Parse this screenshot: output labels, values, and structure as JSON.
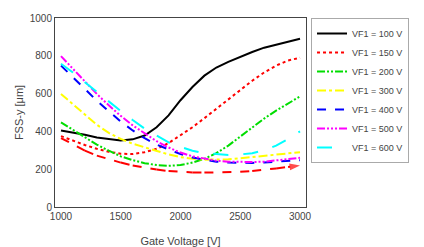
{
  "chart_data": {
    "type": "line",
    "xlabel": "Gate Voltage [V]",
    "ylabel": "FSS-y [μm]",
    "xlim": [
      950,
      3050
    ],
    "ylim": [
      0,
      1000
    ],
    "xticks": [
      1000,
      1500,
      2000,
      2500,
      3000
    ],
    "yticks": [
      0,
      200,
      400,
      600,
      800,
      1000
    ],
    "grid": false,
    "legend": "upper right",
    "x": [
      1000,
      1100,
      1200,
      1300,
      1400,
      1500,
      1600,
      1700,
      1800,
      1900,
      2000,
      2100,
      2200,
      2300,
      2400,
      2500,
      2600,
      2700,
      2800,
      2900,
      3000
    ],
    "series": [
      {
        "name": "VF1 = 100 V",
        "color": "black",
        "line_style": "solid",
        "values": [
          405,
          395,
          382,
          368,
          358,
          352,
          358,
          378,
          422,
          485,
          565,
          635,
          695,
          738,
          768,
          795,
          820,
          843,
          860,
          875,
          890
        ]
      },
      {
        "name": "VF1 = 150 V",
        "color": "red",
        "line_style": "dotted",
        "values": [
          375,
          350,
          328,
          308,
          292,
          282,
          280,
          290,
          308,
          338,
          378,
          422,
          470,
          520,
          572,
          620,
          668,
          712,
          748,
          775,
          790
        ]
      },
      {
        "name": "VF1 = 200 V",
        "color": "#00dd00",
        "line_style": "dashdot_dense",
        "values": [
          448,
          408,
          368,
          330,
          298,
          268,
          248,
          232,
          222,
          218,
          222,
          235,
          255,
          285,
          325,
          372,
          422,
          468,
          510,
          548,
          585
        ]
      },
      {
        "name": "VF1 = 300 V",
        "color": "yellow",
        "line_style": "dashdot",
        "values": [
          598,
          542,
          486,
          435,
          392,
          360,
          335,
          315,
          298,
          278,
          264,
          255,
          250,
          250,
          252,
          258,
          265,
          272,
          278,
          285,
          290
        ]
      },
      {
        "name": "VF1 = 400 V",
        "color": "blue",
        "line_style": "dashed",
        "values": [
          748,
          688,
          625,
          562,
          506,
          452,
          405,
          364,
          330,
          304,
          280,
          262,
          250,
          240,
          235,
          233,
          233,
          236,
          240,
          244,
          248
        ]
      },
      {
        "name": "VF1 = 500 V",
        "color": "magenta",
        "line_style": "dashdotdot",
        "values": [
          798,
          732,
          662,
          598,
          538,
          482,
          432,
          388,
          348,
          315,
          288,
          268,
          255,
          245,
          240,
          238,
          238,
          240,
          246,
          252,
          260
        ]
      },
      {
        "name": "VF1 = 600 V",
        "color": "cyan",
        "line_style": "dashed_long",
        "values": [
          758,
          712,
          660,
          608,
          558,
          508,
          460,
          415,
          378,
          342,
          318,
          298,
          285,
          278,
          275,
          278,
          285,
          300,
          325,
          360,
          400
        ]
      },
      {
        "color": "red",
        "line_style": "dashed",
        "marker": "arrow",
        "values": [
          365,
          330,
          298,
          272,
          252,
          235,
          220,
          208,
          198,
          190,
          186,
          183,
          182,
          182,
          183,
          186,
          190,
          196,
          204,
          212,
          220
        ]
      }
    ]
  }
}
